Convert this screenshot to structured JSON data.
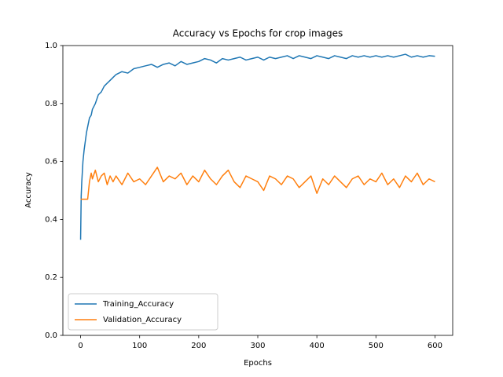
{
  "chart_data": {
    "type": "line",
    "title": "Accuracy vs Epochs for crop images",
    "x_label": "Epochs",
    "y_label": "Accuracy",
    "x": [
      0,
      1,
      2,
      4,
      6,
      8,
      10,
      12,
      15,
      18,
      20,
      25,
      30,
      35,
      40,
      45,
      50,
      55,
      60,
      70,
      80,
      90,
      100,
      110,
      120,
      130,
      140,
      150,
      160,
      170,
      180,
      190,
      200,
      210,
      220,
      230,
      240,
      250,
      260,
      270,
      280,
      290,
      300,
      310,
      320,
      330,
      340,
      350,
      360,
      370,
      380,
      390,
      400,
      410,
      420,
      430,
      440,
      450,
      460,
      470,
      480,
      490,
      500,
      510,
      520,
      530,
      540,
      550,
      560,
      570,
      580,
      590,
      600
    ],
    "series": [
      {
        "name": "Training_Accuracy",
        "color": "#1f77b4",
        "values": [
          0.33,
          0.48,
          0.53,
          0.6,
          0.64,
          0.67,
          0.7,
          0.72,
          0.75,
          0.76,
          0.78,
          0.8,
          0.83,
          0.84,
          0.86,
          0.87,
          0.88,
          0.89,
          0.9,
          0.91,
          0.905,
          0.92,
          0.925,
          0.93,
          0.935,
          0.925,
          0.935,
          0.94,
          0.93,
          0.945,
          0.935,
          0.94,
          0.945,
          0.955,
          0.95,
          0.94,
          0.955,
          0.95,
          0.955,
          0.96,
          0.95,
          0.955,
          0.96,
          0.95,
          0.96,
          0.955,
          0.96,
          0.965,
          0.955,
          0.965,
          0.96,
          0.955,
          0.965,
          0.96,
          0.955,
          0.965,
          0.96,
          0.955,
          0.965,
          0.96,
          0.965,
          0.96,
          0.965,
          0.96,
          0.965,
          0.96,
          0.965,
          0.97,
          0.96,
          0.965,
          0.96,
          0.965,
          0.963
        ]
      },
      {
        "name": "Validation_Accuracy",
        "color": "#ff7f0e",
        "values": [
          0.47,
          0.47,
          0.47,
          0.47,
          0.47,
          0.47,
          0.47,
          0.47,
          0.53,
          0.56,
          0.54,
          0.57,
          0.53,
          0.55,
          0.56,
          0.52,
          0.55,
          0.53,
          0.55,
          0.52,
          0.56,
          0.53,
          0.54,
          0.52,
          0.55,
          0.58,
          0.53,
          0.55,
          0.54,
          0.56,
          0.52,
          0.55,
          0.53,
          0.57,
          0.54,
          0.52,
          0.55,
          0.57,
          0.53,
          0.51,
          0.55,
          0.54,
          0.53,
          0.5,
          0.55,
          0.54,
          0.52,
          0.55,
          0.54,
          0.51,
          0.53,
          0.55,
          0.49,
          0.54,
          0.52,
          0.55,
          0.53,
          0.51,
          0.54,
          0.55,
          0.52,
          0.54,
          0.53,
          0.56,
          0.52,
          0.54,
          0.51,
          0.55,
          0.53,
          0.56,
          0.52,
          0.54,
          0.53
        ]
      }
    ],
    "xlim": [
      -30,
      630
    ],
    "ylim": [
      0,
      1
    ],
    "xticks": [
      0,
      100,
      200,
      300,
      400,
      500,
      600
    ],
    "yticks": [
      {
        "value": 0,
        "label": "0.0"
      },
      0.2,
      0.4,
      0.6,
      0.8,
      {
        "value": 1,
        "label": "1.0"
      }
    ],
    "legend": "lower left"
  }
}
